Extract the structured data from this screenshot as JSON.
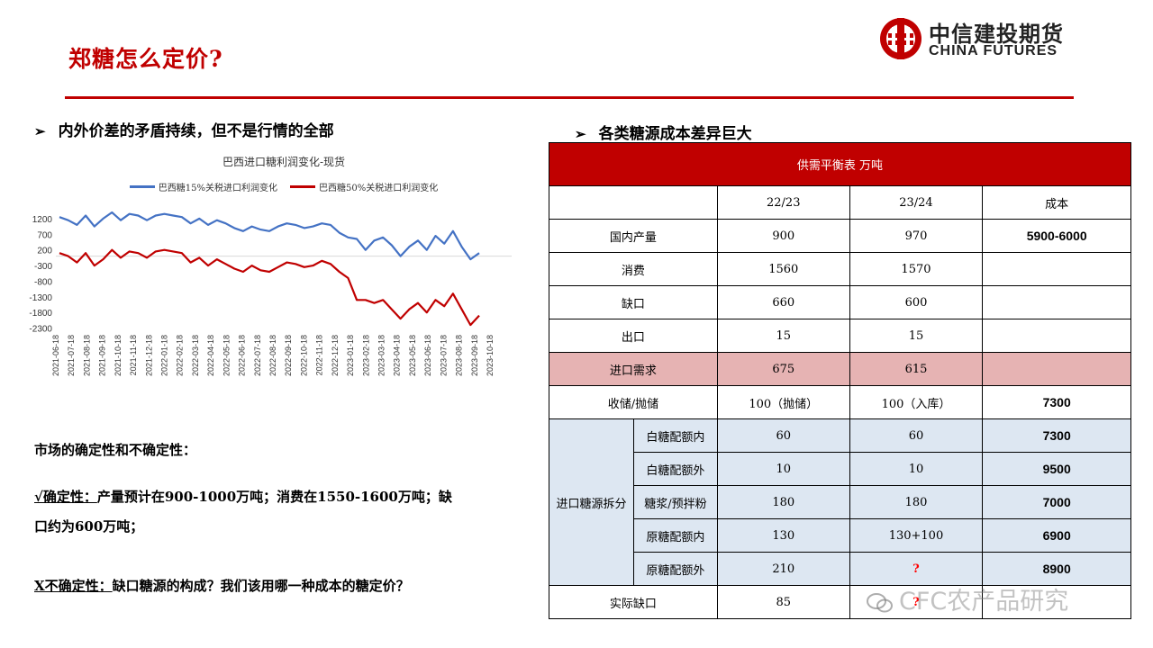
{
  "page": {
    "title": "郑糖怎么定价?"
  },
  "logo": {
    "cn": "中信建投期货",
    "en": "CHINA FUTURES"
  },
  "left": {
    "bullet": "内外价差的矛盾持续，但不是行情的全部",
    "certainty_heading": "市场的确定性和不确定性：",
    "certain_label": "√确定性：",
    "certain_text_1": "产量预计在900-1000万吨；消费在1550-1600万吨；缺",
    "certain_text_2": "口约为600万吨；",
    "uncertain_label": "X不确定性：",
    "uncertain_text": "缺口糖源的构成？我们该用哪一种成本的糖定价？"
  },
  "right": {
    "bullet": "各类糖源成本差异巨大"
  },
  "colors": {
    "brand_red": "#c00000",
    "series_blue": "#4472c4",
    "series_red": "#c00000",
    "pink_row": "#e6b3b3",
    "blue_rows": "#dde7f2"
  },
  "chart_data": {
    "type": "line",
    "title": "巴西进口糖利润变化-现货",
    "series": [
      {
        "name": "巴西糖15%关税进口利润变化",
        "color": "#4472c4",
        "values": [
          1250,
          1150,
          1000,
          1300,
          950,
          1200,
          1400,
          1150,
          1350,
          1300,
          1150,
          1300,
          1350,
          1300,
          1250,
          1050,
          1200,
          1000,
          1150,
          1050,
          900,
          800,
          950,
          850,
          800,
          950,
          1050,
          1000,
          900,
          950,
          1050,
          1000,
          750,
          600,
          550,
          200,
          500,
          600,
          350,
          0,
          300,
          500,
          200,
          650,
          400,
          800,
          300,
          -100,
          100
        ]
      },
      {
        "name": "巴西糖50%关税进口利润变化",
        "color": "#c00000",
        "values": [
          100,
          0,
          -200,
          100,
          -300,
          -100,
          200,
          -50,
          150,
          100,
          -50,
          150,
          200,
          150,
          100,
          -200,
          -50,
          -300,
          -100,
          -250,
          -400,
          -500,
          -300,
          -450,
          -500,
          -350,
          -200,
          -250,
          -350,
          -300,
          -150,
          -250,
          -500,
          -700,
          -1400,
          -1400,
          -1500,
          -1400,
          -1700,
          -2000,
          -1700,
          -1500,
          -1800,
          -1400,
          -1600,
          -1200,
          -1700,
          -2200,
          -1900
        ]
      }
    ],
    "yticks": [
      1200,
      700,
      200,
      -300,
      -800,
      -1300,
      -1800,
      -2300
    ],
    "ylim": [
      -2400,
      1400
    ],
    "xticks": [
      "2021-06-18",
      "2021-07-18",
      "2021-08-18",
      "2021-09-18",
      "2021-10-18",
      "2021-11-18",
      "2021-12-18",
      "2022-01-18",
      "2022-02-18",
      "2022-03-18",
      "2022-04-18",
      "2022-05-18",
      "2022-06-18",
      "2022-07-18",
      "2022-08-18",
      "2022-09-18",
      "2022-10-18",
      "2022-11-18",
      "2022-12-18",
      "2023-01-18",
      "2023-02-18",
      "2023-03-18",
      "2023-04-18",
      "2023-05-18",
      "2023-06-18",
      "2023-07-18",
      "2023-08-18",
      "2023-09-18",
      "2023-10-18"
    ],
    "grid": false,
    "legend": "top"
  },
  "table": {
    "header": "供需平衡表 万吨",
    "columns": [
      "22/23",
      "23/24",
      "成本"
    ],
    "rows": [
      {
        "label": "国内产量",
        "v1": "900",
        "v2": "970",
        "cost": "5900-6000"
      },
      {
        "label": "消费",
        "v1": "1560",
        "v2": "1570",
        "cost": ""
      },
      {
        "label": "缺口",
        "v1": "660",
        "v2": "600",
        "cost": ""
      },
      {
        "label": "出口",
        "v1": "15",
        "v2": "15",
        "cost": ""
      },
      {
        "label": "进口需求",
        "v1": "675",
        "v2": "615",
        "cost": ""
      },
      {
        "label": "收储/抛储",
        "v1": "100（抛储）",
        "v2": "100（入库）",
        "cost": "7300"
      }
    ],
    "group_label": "进口糖源拆分",
    "group_rows": [
      {
        "label": "白糖配额内",
        "v1": "60",
        "v2": "60",
        "cost": "7300"
      },
      {
        "label": "白糖配额外",
        "v1": "10",
        "v2": "10",
        "cost": "9500"
      },
      {
        "label": "糖浆/预拌粉",
        "v1": "180",
        "v2": "180",
        "cost": "7000"
      },
      {
        "label": "原糖配额内",
        "v1": "130",
        "v2": "130+100",
        "cost": "6900"
      },
      {
        "label": "原糖配额外",
        "v1": "210",
        "v2": "?",
        "cost": "8900"
      }
    ],
    "last_row": {
      "label": "实际缺口",
      "v1": "85",
      "v2": "?",
      "cost": ""
    }
  },
  "watermark": {
    "text": "CFC农产品研究"
  }
}
